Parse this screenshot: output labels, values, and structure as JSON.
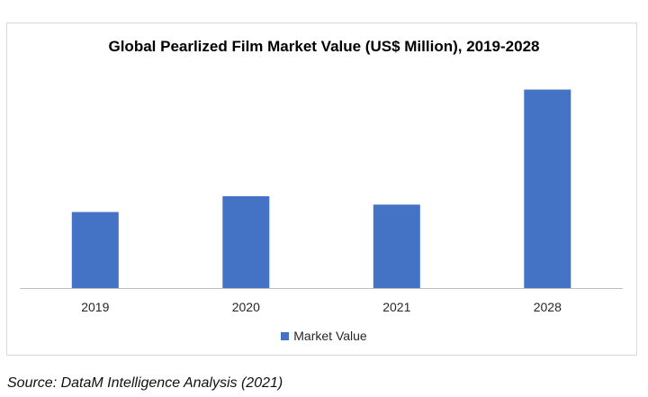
{
  "chart_data": {
    "type": "bar",
    "title": "Global Pearlized Film Market Value (US$ Million), 2019-2028",
    "categories": [
      "2019",
      "2020",
      "2021",
      "2028"
    ],
    "series": [
      {
        "name": "Market Value",
        "values": [
          82,
          99,
          90,
          214
        ],
        "color": "#4472c4"
      }
    ],
    "xlabel": "",
    "ylabel": "",
    "ylim": [
      0,
      230
    ],
    "grid": false,
    "legend_position": "bottom",
    "value_axis_visible": false
  },
  "source": "Source: DataM Intelligence Analysis (2021)"
}
